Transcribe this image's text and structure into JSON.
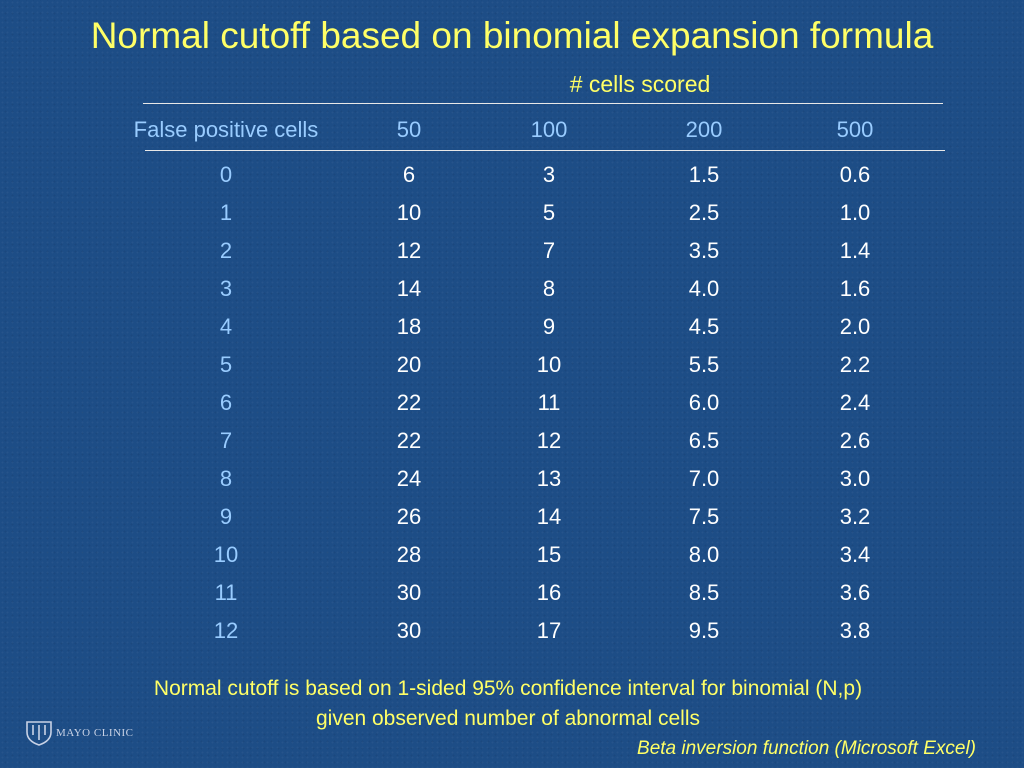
{
  "title": "Normal cutoff based on binomial expansion formula",
  "table": {
    "group_label": "# cells scored",
    "headers": [
      "False positive cells",
      "50",
      "100",
      "200",
      "500"
    ],
    "rows": [
      [
        "0",
        "6",
        "3",
        "1.5",
        "0.6"
      ],
      [
        "1",
        "10",
        "5",
        "2.5",
        "1.0"
      ],
      [
        "2",
        "12",
        "7",
        "3.5",
        "1.4"
      ],
      [
        "3",
        "14",
        "8",
        "4.0",
        "1.6"
      ],
      [
        "4",
        "18",
        "9",
        "4.5",
        "2.0"
      ],
      [
        "5",
        "20",
        "10",
        "5.5",
        "2.2"
      ],
      [
        "6",
        "22",
        "11",
        "6.0",
        "2.4"
      ],
      [
        "7",
        "22",
        "12",
        "6.5",
        "2.6"
      ],
      [
        "8",
        "24",
        "13",
        "7.0",
        "3.0"
      ],
      [
        "9",
        "26",
        "14",
        "7.5",
        "3.2"
      ],
      [
        "10",
        "28",
        "15",
        "8.0",
        "3.4"
      ],
      [
        "11",
        "30",
        "16",
        "8.5",
        "3.6"
      ],
      [
        "12",
        "30",
        "17",
        "9.5",
        "3.8"
      ]
    ]
  },
  "footnote": {
    "line1": "Normal cutoff is based on 1-sided 95% confidence interval for binomial (N,p)",
    "line2": "given observed number of abnormal cells"
  },
  "source": "Beta inversion function (Microsoft Excel)",
  "logo": {
    "text": "MAYO CLINIC",
    "icon": "mayo-shield-logo-icon"
  },
  "colors": {
    "background": "#1d4d86",
    "title": "#ffff66",
    "label_blue": "#99ccff",
    "value_white": "#ffffff",
    "rule": "#e8e8e8"
  }
}
